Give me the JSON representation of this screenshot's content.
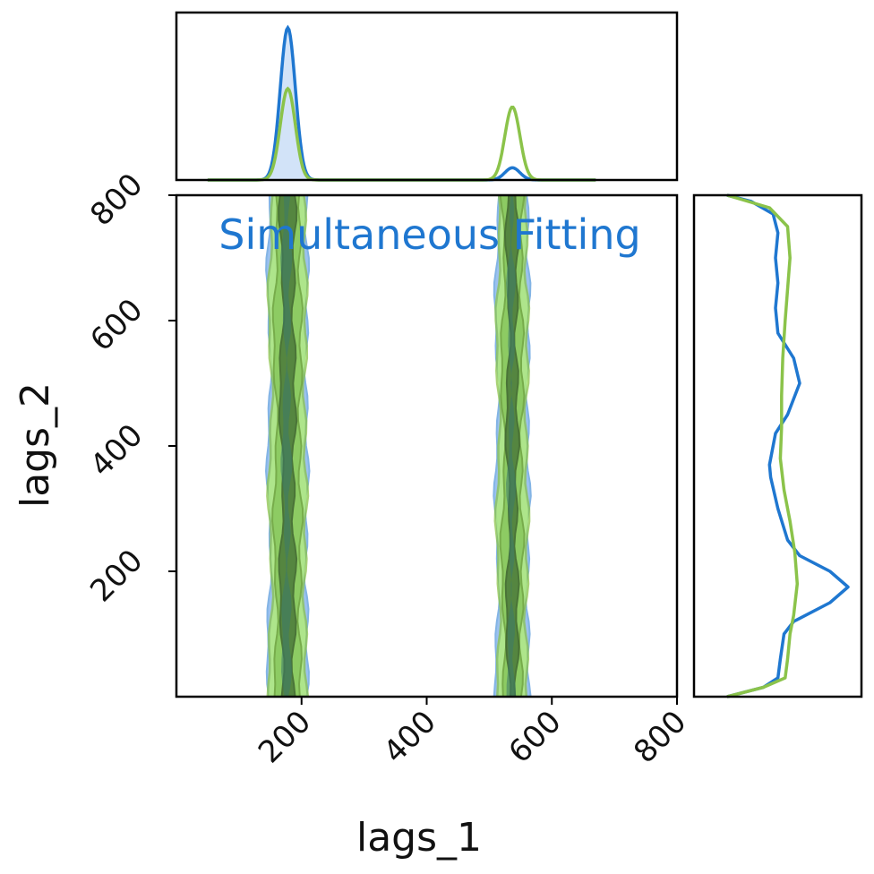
{
  "chart_data": {
    "type": "corner",
    "annotation": "Simultaneous Fitting",
    "xlabel": "lags_1",
    "ylabel": "lags_2",
    "xlim": [
      0,
      800
    ],
    "ylim": [
      0,
      800
    ],
    "xticks": [
      200,
      400,
      600,
      800
    ],
    "yticks": [
      200,
      400,
      600,
      800
    ],
    "series": [
      {
        "color": "#1f77d0",
        "fill_color": "#4a90e2",
        "lags_1_peaks": [
          {
            "center": 178,
            "width": 12,
            "amp": 1.0
          },
          {
            "center": 537,
            "width": 12,
            "amp": 0.08
          }
        ],
        "lags_2_density": [
          {
            "y": 0,
            "d": 0.0
          },
          {
            "y": 15,
            "d": 0.3
          },
          {
            "y": 30,
            "d": 0.42
          },
          {
            "y": 60,
            "d": 0.44
          },
          {
            "y": 100,
            "d": 0.47
          },
          {
            "y": 120,
            "d": 0.55
          },
          {
            "y": 150,
            "d": 0.85
          },
          {
            "y": 175,
            "d": 1.0
          },
          {
            "y": 200,
            "d": 0.85
          },
          {
            "y": 225,
            "d": 0.6
          },
          {
            "y": 250,
            "d": 0.5
          },
          {
            "y": 300,
            "d": 0.42
          },
          {
            "y": 350,
            "d": 0.36
          },
          {
            "y": 370,
            "d": 0.35
          },
          {
            "y": 420,
            "d": 0.4
          },
          {
            "y": 450,
            "d": 0.5
          },
          {
            "y": 500,
            "d": 0.6
          },
          {
            "y": 540,
            "d": 0.55
          },
          {
            "y": 580,
            "d": 0.42
          },
          {
            "y": 620,
            "d": 0.4
          },
          {
            "y": 660,
            "d": 0.42
          },
          {
            "y": 700,
            "d": 0.4
          },
          {
            "y": 740,
            "d": 0.42
          },
          {
            "y": 770,
            "d": 0.38
          },
          {
            "y": 790,
            "d": 0.2
          },
          {
            "y": 800,
            "d": 0.0
          }
        ]
      },
      {
        "color": "#8bc34a",
        "fill_color": "#b5f26a",
        "lags_1_peaks": [
          {
            "center": 178,
            "width": 12,
            "amp": 0.6
          },
          {
            "center": 537,
            "width": 12,
            "amp": 0.48
          }
        ],
        "lags_2_density": [
          {
            "y": 0,
            "d": 0.0
          },
          {
            "y": 15,
            "d": 0.3
          },
          {
            "y": 30,
            "d": 0.48
          },
          {
            "y": 60,
            "d": 0.5
          },
          {
            "y": 100,
            "d": 0.52
          },
          {
            "y": 130,
            "d": 0.55
          },
          {
            "y": 180,
            "d": 0.58
          },
          {
            "y": 230,
            "d": 0.56
          },
          {
            "y": 280,
            "d": 0.52
          },
          {
            "y": 330,
            "d": 0.47
          },
          {
            "y": 380,
            "d": 0.44
          },
          {
            "y": 430,
            "d": 0.45
          },
          {
            "y": 480,
            "d": 0.45
          },
          {
            "y": 540,
            "d": 0.46
          },
          {
            "y": 600,
            "d": 0.48
          },
          {
            "y": 650,
            "d": 0.5
          },
          {
            "y": 700,
            "d": 0.52
          },
          {
            "y": 750,
            "d": 0.5
          },
          {
            "y": 780,
            "d": 0.35
          },
          {
            "y": 800,
            "d": 0.0
          }
        ]
      }
    ],
    "bands": [
      {
        "center": 178,
        "halfwidth_outer": 30,
        "halfwidth_mid": 20,
        "halfwidth_inner": 10
      },
      {
        "center": 537,
        "halfwidth_outer": 25,
        "halfwidth_mid": 15,
        "halfwidth_inner": 7
      }
    ]
  }
}
